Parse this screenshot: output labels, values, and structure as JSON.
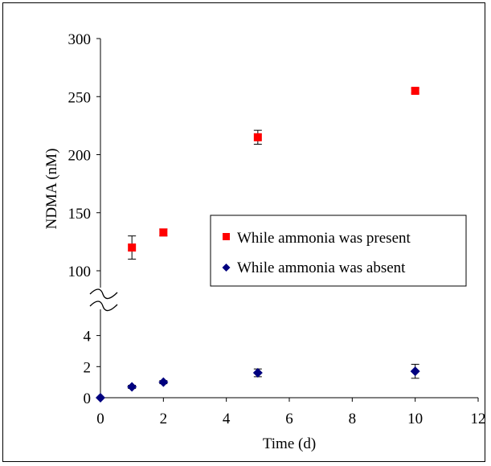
{
  "chart_data": {
    "type": "scatter",
    "xlabel": "Time (d)",
    "ylabel": "NDMA (nM)",
    "xlim": [
      0,
      12
    ],
    "x_ticks": [
      0,
      2,
      4,
      6,
      8,
      10,
      12
    ],
    "axis_break": true,
    "upper_segment": {
      "ylim": [
        100,
        300
      ],
      "y_ticks": [
        100,
        150,
        200,
        250,
        300
      ]
    },
    "lower_segment": {
      "ylim": [
        0,
        5
      ],
      "y_ticks": [
        0,
        2,
        4
      ]
    },
    "grid": false,
    "legend_position": "center-right",
    "series": [
      {
        "name": "While ammonia was present",
        "color": "#ff0000",
        "marker": "square",
        "x": [
          1,
          2,
          5,
          10
        ],
        "y": [
          120,
          133,
          215,
          255
        ],
        "err": [
          10,
          3,
          6,
          2
        ]
      },
      {
        "name": "While ammonia was absent",
        "color": "#00007f",
        "marker": "diamond",
        "x": [
          0,
          1,
          2,
          5,
          10
        ],
        "y": [
          0,
          0.7,
          1.0,
          1.6,
          1.7
        ],
        "err": [
          0,
          0.1,
          0.1,
          0.25,
          0.45
        ]
      }
    ]
  }
}
